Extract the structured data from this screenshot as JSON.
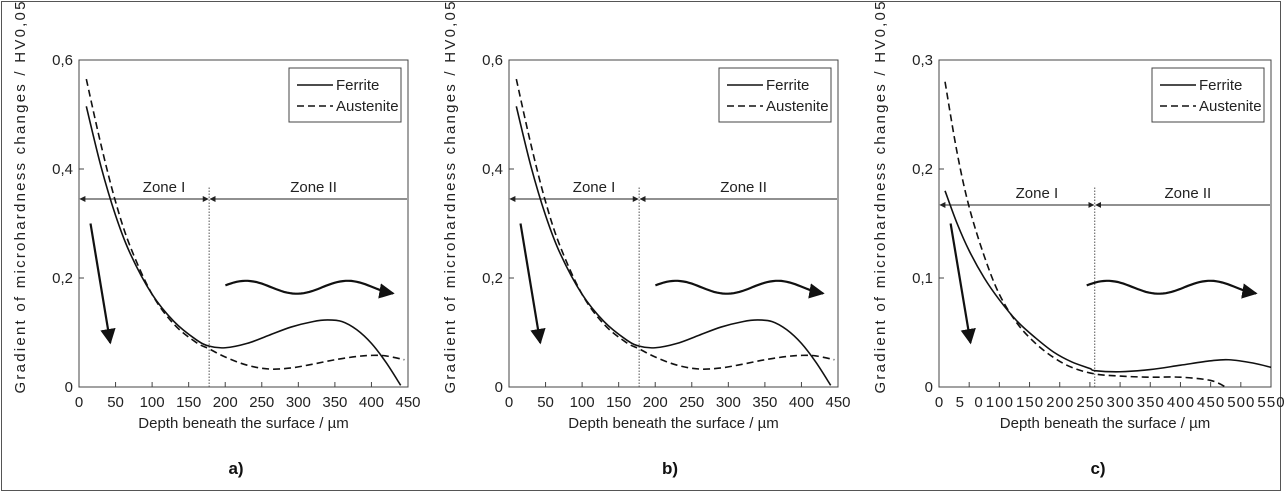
{
  "chart_data": [
    {
      "panel_label": "a)",
      "type": "line",
      "xlabel": "Depth beneath the surface / µm",
      "ylabel": "Gradient of microhardness changes / HV0,05",
      "xlim": [
        0,
        450
      ],
      "ylim": [
        0,
        0.6
      ],
      "x_ticks": [
        "0",
        "50",
        "100",
        "150",
        "200",
        "250",
        "300",
        "350",
        "400",
        "450"
      ],
      "y_ticks": [
        "0",
        "0,2",
        "0,4",
        "0,6"
      ],
      "legend": [
        "Ferrite",
        "Austenite"
      ],
      "legend_position": "top-right",
      "zone_boundary": 178,
      "zone_labels": [
        "Zone I",
        "Zone II"
      ],
      "zone_arrow_y": 0.345,
      "series": [
        {
          "name": "Ferrite",
          "style": "solid",
          "x": [
            10,
            30,
            50,
            70,
            100,
            130,
            160,
            178,
            200,
            230,
            260,
            290,
            320,
            340,
            360,
            380,
            400,
            420,
            440
          ],
          "y": [
            0.515,
            0.405,
            0.315,
            0.245,
            0.17,
            0.12,
            0.087,
            0.075,
            0.072,
            0.08,
            0.095,
            0.11,
            0.12,
            0.123,
            0.12,
            0.105,
            0.08,
            0.045,
            0.003
          ]
        },
        {
          "name": "Austenite",
          "style": "dashed",
          "x": [
            10,
            30,
            50,
            70,
            100,
            130,
            160,
            178,
            200,
            230,
            260,
            290,
            320,
            350,
            380,
            400,
            420,
            445
          ],
          "y": [
            0.565,
            0.445,
            0.34,
            0.258,
            0.17,
            0.115,
            0.082,
            0.07,
            0.055,
            0.04,
            0.033,
            0.035,
            0.042,
            0.05,
            0.056,
            0.058,
            0.057,
            0.05
          ]
        }
      ]
    },
    {
      "panel_label": "b)",
      "type": "line",
      "xlabel": "Depth beneath the surface / µm",
      "ylabel": "Gradient of microhardness changes / HV0,05",
      "xlim": [
        0,
        450
      ],
      "ylim": [
        0,
        0.6
      ],
      "x_ticks": [
        "0",
        "50",
        "100",
        "150",
        "200",
        "250",
        "300",
        "350",
        "400",
        "450"
      ],
      "y_ticks": [
        "0",
        "0,2",
        "0,4",
        "0,6"
      ],
      "legend": [
        "Ferrite",
        "Austenite"
      ],
      "legend_position": "top-right",
      "zone_boundary": 178,
      "zone_labels": [
        "Zone I",
        "Zone II"
      ],
      "zone_arrow_y": 0.345,
      "series": [
        {
          "name": "Ferrite",
          "style": "solid",
          "x": [
            10,
            30,
            50,
            70,
            100,
            130,
            160,
            178,
            200,
            230,
            260,
            290,
            320,
            340,
            360,
            380,
            400,
            420,
            440
          ],
          "y": [
            0.515,
            0.405,
            0.315,
            0.245,
            0.17,
            0.12,
            0.087,
            0.075,
            0.072,
            0.08,
            0.095,
            0.11,
            0.12,
            0.123,
            0.12,
            0.105,
            0.08,
            0.045,
            0.003
          ]
        },
        {
          "name": "Austenite",
          "style": "dashed",
          "x": [
            10,
            30,
            50,
            70,
            100,
            130,
            160,
            178,
            200,
            230,
            260,
            290,
            320,
            350,
            380,
            400,
            420,
            445
          ],
          "y": [
            0.565,
            0.445,
            0.34,
            0.258,
            0.17,
            0.115,
            0.082,
            0.07,
            0.055,
            0.04,
            0.033,
            0.035,
            0.042,
            0.05,
            0.056,
            0.058,
            0.057,
            0.05
          ]
        }
      ]
    },
    {
      "panel_label": "c)",
      "type": "line",
      "xlabel": "Depth beneath the surface / µm",
      "ylabel": "Gradient of microhardness changes / HV0,05",
      "xlim": [
        0,
        550
      ],
      "ylim": [
        0,
        0.3
      ],
      "x_ticks": [
        "0",
        "50",
        "100",
        "150",
        "200",
        "250",
        "300",
        "350",
        "400",
        "450",
        "500",
        "550"
      ],
      "y_ticks": [
        "0",
        "0,1",
        "0,2",
        "0,3"
      ],
      "legend": [
        "Ferrite",
        "Austenite"
      ],
      "legend_position": "top-right",
      "zone_boundary": 258,
      "zone_labels": [
        "Zone I",
        "Zone II"
      ],
      "zone_arrow_y": 0.167,
      "series": [
        {
          "name": "Ferrite",
          "style": "solid",
          "x": [
            10,
            30,
            50,
            75,
            100,
            130,
            160,
            190,
            220,
            250,
            258,
            300,
            350,
            400,
            450,
            480,
            520,
            550
          ],
          "y": [
            0.18,
            0.15,
            0.125,
            0.1,
            0.08,
            0.06,
            0.045,
            0.032,
            0.023,
            0.017,
            0.015,
            0.014,
            0.016,
            0.02,
            0.024,
            0.025,
            0.022,
            0.018
          ]
        },
        {
          "name": "Austenite",
          "style": "dashed",
          "x": [
            10,
            30,
            50,
            75,
            100,
            130,
            160,
            190,
            220,
            258,
            300,
            350,
            400,
            450,
            475
          ],
          "y": [
            0.28,
            0.215,
            0.165,
            0.12,
            0.085,
            0.058,
            0.04,
            0.027,
            0.018,
            0.012,
            0.01,
            0.009,
            0.009,
            0.006,
            0.0
          ]
        }
      ]
    }
  ]
}
